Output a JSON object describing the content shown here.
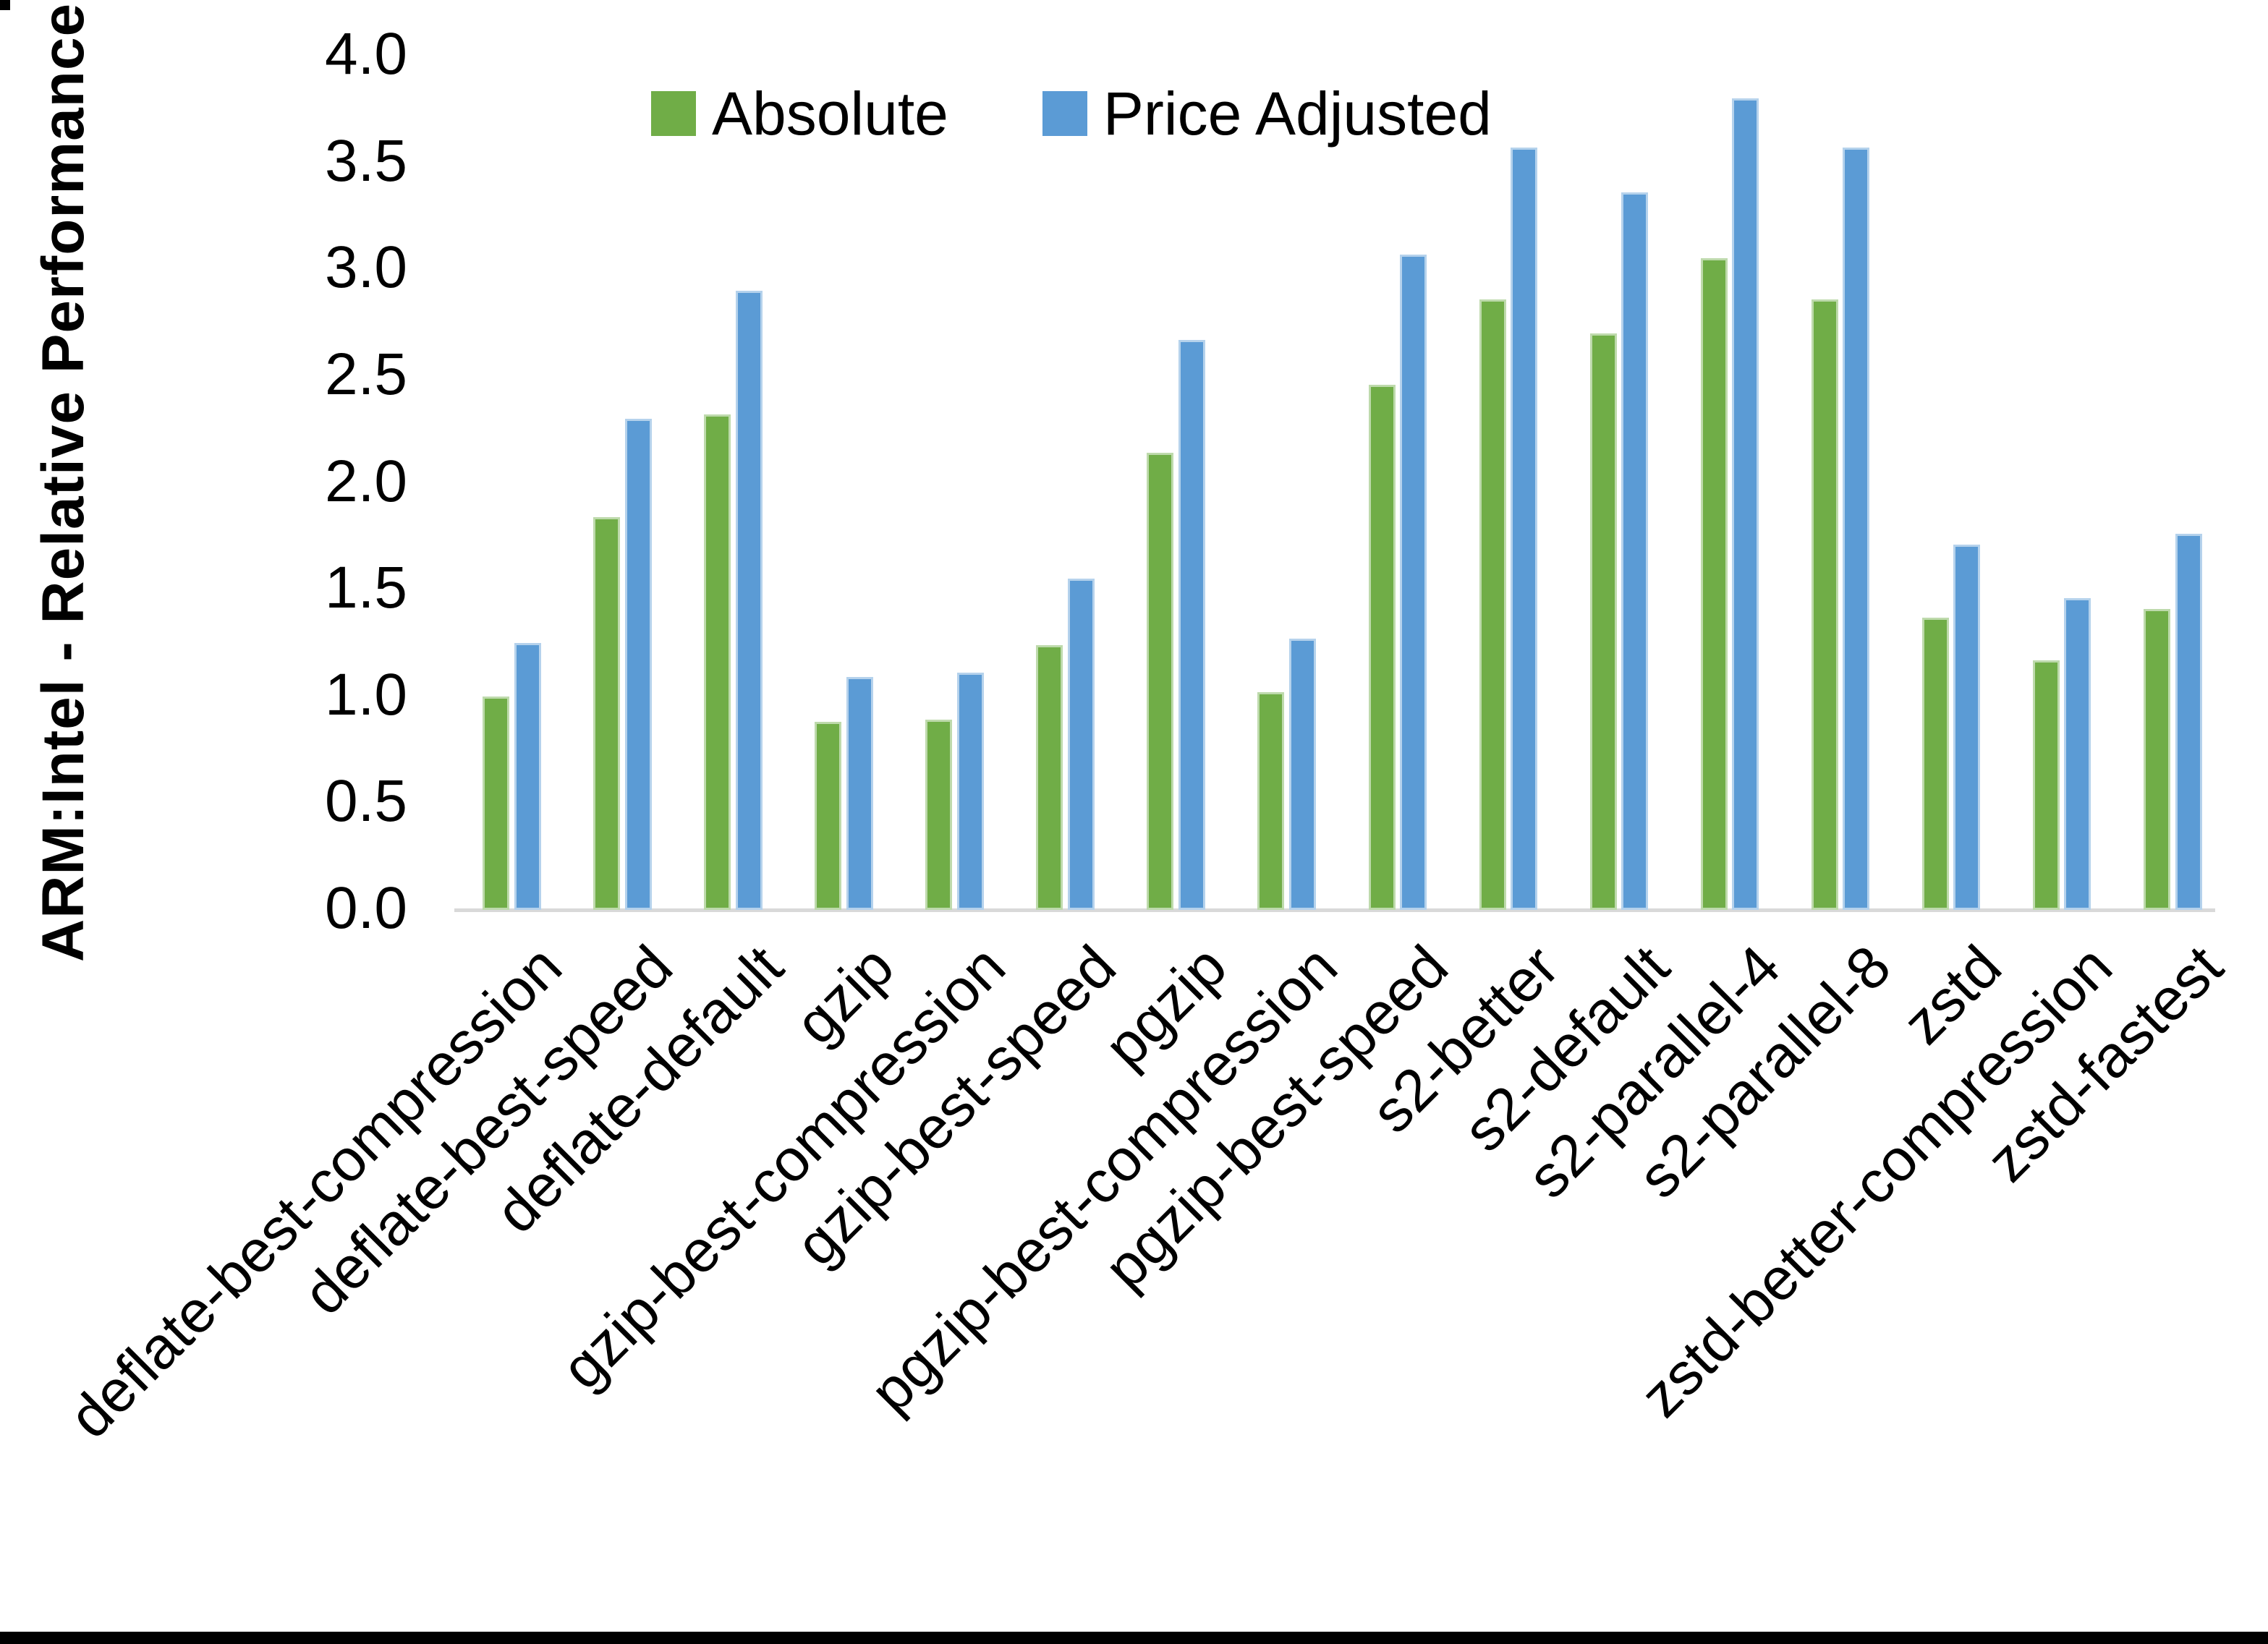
{
  "window": {
    "has_top_left_corner_mark": true,
    "has_bottom_black_bar": true
  },
  "axes": {
    "y_title": "ARM:Intel - Relative Performance",
    "y_ticks": [
      "0.0",
      "0.5",
      "1.0",
      "1.5",
      "2.0",
      "2.5",
      "3.0",
      "3.5",
      "4.0"
    ]
  },
  "legend": {
    "items": [
      {
        "label": "Absolute",
        "color": "#70AD47"
      },
      {
        "label": "Price Adjusted",
        "color": "#5B9BD5"
      }
    ]
  },
  "colors": {
    "absolute_green": "#70AD47",
    "price_adjusted_blue": "#5B9BD5",
    "axis_line_gray": "#D9D9D9",
    "text_black": "#000000"
  },
  "chart_data": {
    "type": "bar",
    "title": "",
    "xlabel": "",
    "ylabel": "ARM:Intel - Relative Performance",
    "ylim": [
      0.0,
      4.0
    ],
    "ytick_interval": 0.5,
    "grid": false,
    "legend_position": "top-center",
    "categories": [
      "deflate-best-compression",
      "deflate-best-speed",
      "deflate-default",
      "gzip",
      "gzip-best-compression",
      "gzip-best-speed",
      "pgzip",
      "pgzip-best-compression",
      "pgzip-best-speed",
      "s2-better",
      "s2-default",
      "s2-parallel-4",
      "s2-parallel-8",
      "zstd",
      "zstd-better-compression",
      "zstd-fastest"
    ],
    "series": [
      {
        "name": "Absolute",
        "color": "#70AD47",
        "values": [
          1.0,
          1.84,
          2.32,
          0.88,
          0.89,
          1.24,
          2.14,
          1.02,
          2.46,
          2.86,
          2.7,
          3.05,
          2.86,
          1.37,
          1.17,
          1.41
        ]
      },
      {
        "name": "Price Adjusted",
        "color": "#5B9BD5",
        "values": [
          1.25,
          2.3,
          2.9,
          1.09,
          1.11,
          1.55,
          2.67,
          1.27,
          3.07,
          3.57,
          3.36,
          3.8,
          3.57,
          1.71,
          1.46,
          1.76
        ]
      }
    ]
  }
}
